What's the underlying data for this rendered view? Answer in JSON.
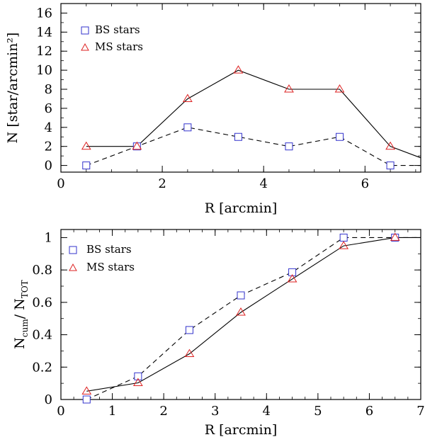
{
  "colors": {
    "bs": "#3333cc",
    "ms": "#dd2222",
    "axis": "#000000"
  },
  "chart_data": [
    {
      "type": "line",
      "xlabel": "R [arcmin]",
      "ylabel": "N [star/arcmin²]",
      "xlim": [
        0,
        7.1
      ],
      "ylim": [
        -0.7,
        17
      ],
      "xticks": [
        0,
        2,
        4,
        6
      ],
      "yticks": [
        0,
        2,
        4,
        6,
        8,
        10,
        12,
        14,
        16
      ],
      "legend_position": "top-left",
      "series": [
        {
          "name": "BS stars",
          "marker": "square",
          "line": "dashed",
          "x": [
            0.5,
            1.5,
            2.5,
            3.5,
            4.5,
            5.5,
            6.5,
            7.1
          ],
          "y": [
            0,
            2,
            4,
            3,
            2,
            3,
            0,
            0
          ]
        },
        {
          "name": "MS stars",
          "marker": "triangle",
          "line": "solid",
          "x": [
            0.5,
            1.5,
            2.5,
            3.5,
            4.5,
            5.5,
            6.5,
            7.1
          ],
          "y": [
            2,
            2,
            7,
            10,
            8,
            8,
            2,
            0.8
          ]
        }
      ]
    },
    {
      "type": "line",
      "xlabel": "R [arcmin]",
      "ylabel_main": "N",
      "ylabel_sub1": "cum",
      "ylabel_mid": "/  N",
      "ylabel_sub2": "TOT",
      "xlim": [
        0,
        7
      ],
      "ylim": [
        0,
        1.05
      ],
      "xticks": [
        0,
        1,
        2,
        3,
        4,
        5,
        6,
        7
      ],
      "yticks": [
        0,
        0.2,
        0.4,
        0.6,
        0.8,
        1
      ],
      "legend_position": "top-left",
      "series": [
        {
          "name": "BS stars",
          "marker": "square",
          "line": "dashed",
          "x": [
            0.5,
            1.5,
            2.5,
            3.5,
            4.5,
            5.5,
            6.5,
            7
          ],
          "y": [
            0,
            0.143,
            0.429,
            0.643,
            0.786,
            1.0,
            1.0,
            1.0
          ]
        },
        {
          "name": "MS stars",
          "marker": "triangle",
          "line": "solid",
          "x": [
            0.5,
            1.5,
            2.5,
            3.5,
            4.5,
            5.5,
            6.5,
            7
          ],
          "y": [
            0.051,
            0.103,
            0.282,
            0.538,
            0.744,
            0.949,
            1.0,
            1.0
          ]
        }
      ]
    }
  ]
}
